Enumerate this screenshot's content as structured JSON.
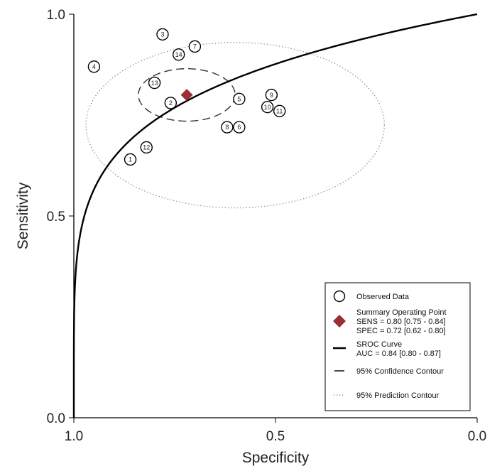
{
  "chart_data": {
    "type": "scatter",
    "title": "",
    "xlabel": "Specificity",
    "ylabel": "Sensitivity",
    "xlim": [
      1.0,
      0.0
    ],
    "ylim": [
      0.0,
      1.0
    ],
    "x_ticks": [
      "1.0",
      "0.5",
      "0.0"
    ],
    "y_ticks": [
      "0.0",
      "0.5",
      "1.0"
    ],
    "grid": false,
    "legend_position": "bottom-right",
    "series": [
      {
        "name": "Observed Data",
        "points": [
          {
            "label": "1",
            "spec": 0.86,
            "sens": 0.64
          },
          {
            "label": "2",
            "spec": 0.76,
            "sens": 0.78
          },
          {
            "label": "3",
            "spec": 0.78,
            "sens": 0.95
          },
          {
            "label": "4",
            "spec": 0.95,
            "sens": 0.87
          },
          {
            "label": "5",
            "spec": 0.59,
            "sens": 0.79
          },
          {
            "label": "6",
            "spec": 0.59,
            "sens": 0.72
          },
          {
            "label": "7",
            "spec": 0.7,
            "sens": 0.92
          },
          {
            "label": "8",
            "spec": 0.62,
            "sens": 0.72
          },
          {
            "label": "9",
            "spec": 0.51,
            "sens": 0.8
          },
          {
            "label": "10",
            "spec": 0.52,
            "sens": 0.77
          },
          {
            "label": "11",
            "spec": 0.49,
            "sens": 0.76
          },
          {
            "label": "12",
            "spec": 0.82,
            "sens": 0.67
          },
          {
            "label": "13",
            "spec": 0.8,
            "sens": 0.83
          },
          {
            "label": "14",
            "spec": 0.74,
            "sens": 0.9
          }
        ]
      },
      {
        "name": "Summary Operating Point",
        "spec": 0.72,
        "sens": 0.8,
        "color": "#9b2d33"
      },
      {
        "name": "SROC Curve",
        "auc": 0.84
      },
      {
        "name": "95% Confidence Contour",
        "center_spec": 0.72,
        "center_sens": 0.8,
        "radius_spec": 0.12,
        "radius_sens": 0.065
      },
      {
        "name": "95% Prediction Contour",
        "center_spec": 0.6,
        "center_sens": 0.725,
        "radius_spec": 0.37,
        "radius_sens": 0.205
      }
    ],
    "legend": {
      "observed": "Observed Data",
      "summary_title": "Summary Operating Point",
      "summary_sens": "SENS = 0.80 [0.75 - 0.84]",
      "summary_spec": "SPEC = 0.72 [0.62 - 0.80]",
      "sroc_title": "SROC Curve",
      "sroc_auc": "AUC = 0.84 [0.80 - 0.87]",
      "confidence": "95% Confidence Contour",
      "prediction": "95% Prediction Contour"
    }
  }
}
